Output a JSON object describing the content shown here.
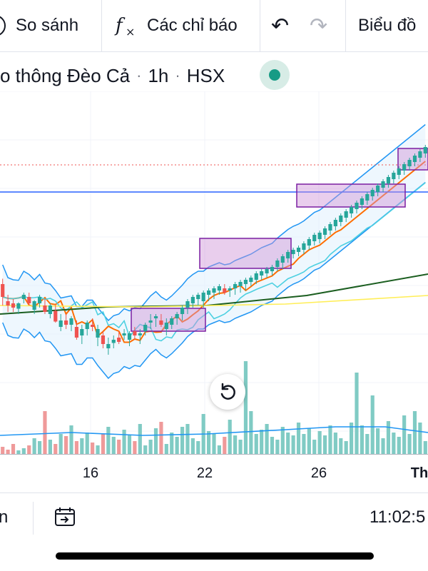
{
  "toolbar": {
    "compare_label": "So sánh",
    "indicators_label": "Các chỉ báo",
    "chart_type_label": "Biểu đồ",
    "undo_icon": "undo-icon",
    "redo_icon": "redo-icon",
    "fx_icon": "function-icon",
    "compare_icon": "add-symbol-icon"
  },
  "symbol": {
    "name": "o thông Đèo Cả",
    "interval": "1h",
    "exchange": "HSX",
    "status_color": "#179b85"
  },
  "xaxis": {
    "labels": [
      "16",
      "22",
      "26",
      "Th"
    ]
  },
  "bottombar": {
    "left_text": "n",
    "clock": "11:02:5",
    "goto_icon": "go-to-date-icon"
  },
  "colors": {
    "up": "#26a69a",
    "down": "#ef5350",
    "accent": "#2962ff",
    "range_box": "#9c27b0"
  },
  "chart_data": {
    "type": "candlestick",
    "candles": [
      [
        420,
        425,
        400,
        408
      ],
      [
        404,
        410,
        394,
        400
      ],
      [
        402,
        406,
        394,
        398
      ],
      [
        397,
        403,
        392,
        402
      ],
      [
        406,
        412,
        402,
        410
      ],
      [
        408,
        412,
        400,
        402
      ],
      [
        396,
        405,
        392,
        404
      ],
      [
        402,
        410,
        398,
        408
      ],
      [
        400,
        406,
        392,
        394
      ],
      [
        392,
        402,
        388,
        400
      ],
      [
        395,
        400,
        384,
        385
      ],
      [
        380,
        392,
        376,
        386
      ],
      [
        386,
        392,
        378,
        382
      ],
      [
        382,
        390,
        376,
        388
      ],
      [
        380,
        386,
        368,
        370
      ],
      [
        372,
        382,
        364,
        378
      ],
      [
        378,
        386,
        372,
        384
      ],
      [
        382,
        388,
        376,
        380
      ],
      [
        370,
        382,
        362,
        378
      ],
      [
        372,
        376,
        360,
        364
      ],
      [
        360,
        370,
        354,
        364
      ],
      [
        365,
        372,
        360,
        368
      ],
      [
        370,
        376,
        364,
        366
      ],
      [
        372,
        378,
        368,
        374
      ],
      [
        368,
        376,
        362,
        374
      ],
      [
        376,
        380,
        368,
        372
      ],
      [
        372,
        378,
        364,
        374
      ],
      [
        376,
        384,
        372,
        382
      ],
      [
        384,
        392,
        378,
        386
      ],
      [
        388,
        392,
        380,
        390
      ],
      [
        386,
        392,
        380,
        382
      ],
      [
        378,
        388,
        372,
        384
      ],
      [
        382,
        390,
        378,
        388
      ],
      [
        388,
        394,
        382,
        392
      ],
      [
        392,
        400,
        386,
        398
      ],
      [
        398,
        406,
        392,
        404
      ],
      [
        402,
        410,
        398,
        408
      ],
      [
        406,
        412,
        400,
        410
      ],
      [
        404,
        414,
        398,
        412
      ],
      [
        410,
        416,
        404,
        414
      ],
      [
        412,
        418,
        406,
        416
      ],
      [
        414,
        420,
        410,
        418
      ],
      [
        416,
        420,
        410,
        412
      ],
      [
        414,
        418,
        408,
        416
      ],
      [
        416,
        422,
        410,
        420
      ],
      [
        418,
        424,
        412,
        422
      ],
      [
        420,
        426,
        414,
        424
      ],
      [
        422,
        428,
        418,
        426
      ],
      [
        424,
        432,
        420,
        430
      ],
      [
        428,
        434,
        424,
        432
      ],
      [
        430,
        436,
        426,
        434
      ],
      [
        432,
        438,
        428,
        436
      ],
      [
        436,
        444,
        432,
        442
      ],
      [
        440,
        448,
        434,
        446
      ],
      [
        444,
        452,
        440,
        450
      ],
      [
        448,
        454,
        444,
        452
      ],
      [
        450,
        456,
        446,
        454
      ],
      [
        452,
        460,
        448,
        458
      ],
      [
        456,
        464,
        452,
        462
      ],
      [
        460,
        468,
        456,
        466
      ],
      [
        462,
        470,
        458,
        468
      ],
      [
        466,
        474,
        462,
        472
      ],
      [
        470,
        478,
        466,
        476
      ],
      [
        474,
        482,
        470,
        480
      ],
      [
        478,
        486,
        474,
        484
      ],
      [
        482,
        490,
        478,
        488
      ],
      [
        486,
        494,
        482,
        492
      ],
      [
        490,
        498,
        486,
        496
      ],
      [
        494,
        502,
        490,
        500
      ],
      [
        498,
        506,
        494,
        504
      ],
      [
        502,
        510,
        498,
        508
      ],
      [
        506,
        514,
        502,
        512
      ],
      [
        510,
        518,
        506,
        516
      ],
      [
        514,
        522,
        510,
        520
      ],
      [
        518,
        526,
        514,
        524
      ],
      [
        522,
        530,
        518,
        528
      ],
      [
        526,
        534,
        522,
        532
      ],
      [
        530,
        538,
        526,
        536
      ],
      [
        534,
        542,
        530,
        540
      ],
      [
        538,
        546,
        534,
        544
      ],
      [
        542,
        550,
        538,
        548
      ]
    ],
    "volumes": [
      10,
      6,
      14,
      5,
      8,
      12,
      22,
      18,
      60,
      20,
      14,
      28,
      25,
      40,
      18,
      22,
      30,
      16,
      12,
      28,
      38,
      24,
      20,
      34,
      26,
      18,
      42,
      12,
      20,
      36,
      45,
      14,
      30,
      24,
      38,
      42,
      22,
      18,
      56,
      32,
      28,
      12,
      24,
      48,
      26,
      20,
      130,
      60,
      28,
      34,
      42,
      24,
      20,
      38,
      30,
      26,
      44,
      28,
      36,
      20,
      32,
      26,
      40,
      30,
      22,
      18,
      44,
      114,
      40,
      28,
      82,
      36,
      22,
      46,
      30,
      24,
      54,
      28,
      60,
      44,
      18
    ],
    "range_boxes": [
      {
        "label": "range-box-1",
        "x0": 0.308,
        "x1": 0.478,
        "y0": 0.375,
        "y1": 0.47
      },
      {
        "label": "range-box-2",
        "x0": 0.466,
        "x1": 0.682,
        "y0": 0.575,
        "y1": 0.64
      },
      {
        "label": "range-box-3",
        "x0": 0.695,
        "x1": 0.947,
        "y0": 0.685,
        "y1": 0.74
      },
      {
        "label": "range-box-4",
        "x0": 0.93,
        "x1": 1.0,
        "y0": 0.79,
        "y1": 0.835
      }
    ],
    "last_price": 0.81,
    "horizontal_level": 0.745,
    "title": "",
    "xlabel": "",
    "ylabel": ""
  }
}
